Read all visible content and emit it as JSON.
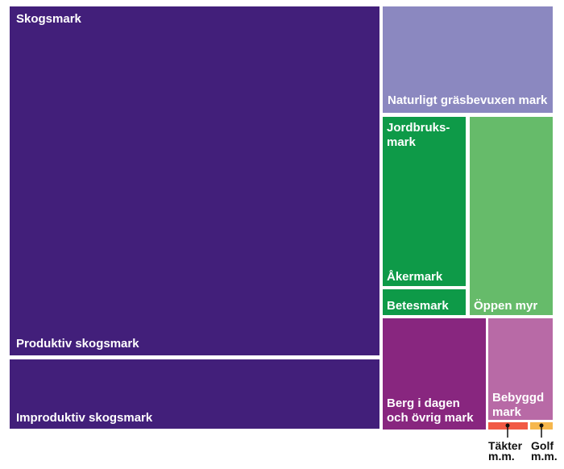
{
  "chart_data": {
    "type": "treemap",
    "title": "",
    "groups": [
      {
        "name": "Skogsmark",
        "color": "#421f7a",
        "children": [
          {
            "name": "Produktiv skogsmark",
            "value": 44.0
          },
          {
            "name": "Improduktiv skogsmark",
            "value": 8.0
          }
        ]
      },
      {
        "name": "Naturligt gräsbevuxen mark",
        "value": 6.2,
        "color": "#8b88c0"
      },
      {
        "name": "Jordbruks-mark",
        "color": "#0e9a48",
        "children": [
          {
            "name": "Åkermark",
            "value": 6.8
          },
          {
            "name": "Betesmark",
            "value": 1.2
          }
        ]
      },
      {
        "name": "Öppen myr",
        "value": 9.0,
        "color": "#66bb6a"
      },
      {
        "name": "Berg i dagen och övrig mark",
        "value": 5.0,
        "color": "#88267f"
      },
      {
        "name": "Bebyggd mark",
        "value": 2.9,
        "color": "#b86aa6"
      },
      {
        "name": "Täkter m.m.",
        "value": 0.3,
        "color": "#f15a45"
      },
      {
        "name": "Golf m.m.",
        "value": 0.2,
        "color": "#f6b74d"
      }
    ]
  }
}
